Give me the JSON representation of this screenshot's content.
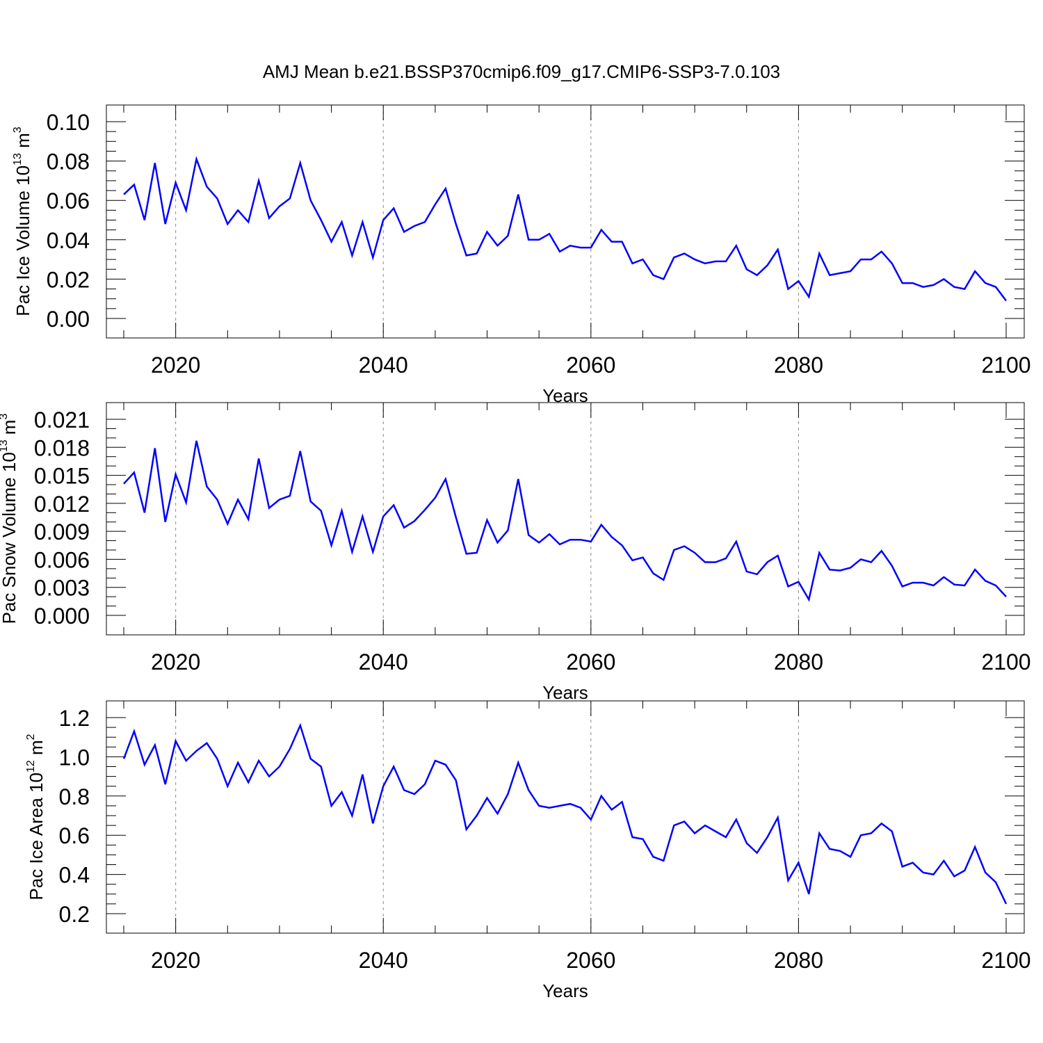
{
  "title": "AMJ Mean b.e21.BSSP370cmip6.f09_g17.CMIP6-SSP3-7.0.103",
  "line_color": "#0000ff",
  "chart_data": [
    {
      "type": "line",
      "ylabel": "Pac Ice Volume",
      "ylabel_unit_base": "10",
      "ylabel_unit_exp": "13",
      "ylabel_unit_tail": " m",
      "ylabel_unit_tail_exp": "3",
      "xlabel": "Years",
      "xlim": [
        2015,
        2100
      ],
      "ylim": [
        0.0,
        0.1
      ],
      "xticks": [
        "2020",
        "2040",
        "2060",
        "2080",
        "2100"
      ],
      "yticks": [
        "0.00",
        "0.02",
        "0.04",
        "0.06",
        "0.08",
        "0.10"
      ],
      "grid": "dashed vertical at major x ticks",
      "x": [
        2015,
        2016,
        2017,
        2018,
        2019,
        2020,
        2021,
        2022,
        2023,
        2024,
        2025,
        2026,
        2027,
        2028,
        2029,
        2030,
        2031,
        2032,
        2033,
        2034,
        2035,
        2036,
        2037,
        2038,
        2039,
        2040,
        2041,
        2042,
        2043,
        2044,
        2045,
        2046,
        2047,
        2048,
        2049,
        2050,
        2051,
        2052,
        2053,
        2054,
        2055,
        2056,
        2057,
        2058,
        2059,
        2060,
        2061,
        2062,
        2063,
        2064,
        2065,
        2066,
        2067,
        2068,
        2069,
        2070,
        2071,
        2072,
        2073,
        2074,
        2075,
        2076,
        2077,
        2078,
        2079,
        2080,
        2081,
        2082,
        2083,
        2084,
        2085,
        2086,
        2087,
        2088,
        2089,
        2090,
        2091,
        2092,
        2093,
        2094,
        2095,
        2096,
        2097,
        2098,
        2099,
        2100
      ],
      "values": [
        0.063,
        0.068,
        0.05,
        0.079,
        0.048,
        0.069,
        0.055,
        0.081,
        0.067,
        0.061,
        0.048,
        0.055,
        0.049,
        0.07,
        0.051,
        0.057,
        0.061,
        0.079,
        0.06,
        0.05,
        0.039,
        0.049,
        0.032,
        0.049,
        0.031,
        0.05,
        0.056,
        0.044,
        0.047,
        0.049,
        0.058,
        0.066,
        0.048,
        0.032,
        0.033,
        0.044,
        0.037,
        0.042,
        0.063,
        0.04,
        0.04,
        0.043,
        0.034,
        0.037,
        0.036,
        0.036,
        0.045,
        0.039,
        0.039,
        0.028,
        0.03,
        0.022,
        0.02,
        0.031,
        0.033,
        0.03,
        0.028,
        0.029,
        0.029,
        0.037,
        0.025,
        0.022,
        0.027,
        0.035,
        0.015,
        0.019,
        0.011,
        0.033,
        0.022,
        0.023,
        0.024,
        0.03,
        0.03,
        0.034,
        0.028,
        0.018,
        0.018,
        0.016,
        0.017,
        0.02,
        0.016,
        0.015,
        0.024,
        0.018,
        0.016,
        0.009
      ]
    },
    {
      "type": "line",
      "ylabel": "Pac Snow Volume",
      "ylabel_unit_base": "10",
      "ylabel_unit_exp": "13",
      "ylabel_unit_tail": " m",
      "ylabel_unit_tail_exp": "3",
      "xlabel": "Years",
      "xlim": [
        2015,
        2100
      ],
      "ylim": [
        0.0,
        0.021
      ],
      "xticks": [
        "2020",
        "2040",
        "2060",
        "2080",
        "2100"
      ],
      "yticks": [
        "0.000",
        "0.003",
        "0.006",
        "0.009",
        "0.012",
        "0.015",
        "0.018",
        "0.021"
      ],
      "grid": "dashed vertical at major x ticks",
      "x": [
        2015,
        2016,
        2017,
        2018,
        2019,
        2020,
        2021,
        2022,
        2023,
        2024,
        2025,
        2026,
        2027,
        2028,
        2029,
        2030,
        2031,
        2032,
        2033,
        2034,
        2035,
        2036,
        2037,
        2038,
        2039,
        2040,
        2041,
        2042,
        2043,
        2044,
        2045,
        2046,
        2047,
        2048,
        2049,
        2050,
        2051,
        2052,
        2053,
        2054,
        2055,
        2056,
        2057,
        2058,
        2059,
        2060,
        2061,
        2062,
        2063,
        2064,
        2065,
        2066,
        2067,
        2068,
        2069,
        2070,
        2071,
        2072,
        2073,
        2074,
        2075,
        2076,
        2077,
        2078,
        2079,
        2080,
        2081,
        2082,
        2083,
        2084,
        2085,
        2086,
        2087,
        2088,
        2089,
        2090,
        2091,
        2092,
        2093,
        2094,
        2095,
        2096,
        2097,
        2098,
        2099,
        2100
      ],
      "values": [
        0.0141,
        0.0153,
        0.011,
        0.0179,
        0.01,
        0.0151,
        0.0121,
        0.0187,
        0.0138,
        0.0124,
        0.0098,
        0.0124,
        0.0103,
        0.0168,
        0.0115,
        0.0124,
        0.0128,
        0.0176,
        0.0122,
        0.0112,
        0.0075,
        0.0112,
        0.0068,
        0.0106,
        0.0068,
        0.0106,
        0.0118,
        0.0094,
        0.0101,
        0.0113,
        0.0126,
        0.0146,
        0.0105,
        0.0066,
        0.0067,
        0.0102,
        0.0078,
        0.0091,
        0.0146,
        0.0086,
        0.0078,
        0.0087,
        0.0076,
        0.0081,
        0.0081,
        0.0079,
        0.0097,
        0.0084,
        0.0075,
        0.0059,
        0.0062,
        0.0045,
        0.0038,
        0.007,
        0.0074,
        0.0067,
        0.0057,
        0.0057,
        0.0061,
        0.0079,
        0.0047,
        0.0044,
        0.0057,
        0.0064,
        0.0031,
        0.0036,
        0.0017,
        0.0067,
        0.0049,
        0.0048,
        0.0051,
        0.006,
        0.0057,
        0.0069,
        0.0053,
        0.0031,
        0.0035,
        0.0035,
        0.0032,
        0.0041,
        0.0033,
        0.0032,
        0.0049,
        0.0037,
        0.0032,
        0.002
      ]
    },
    {
      "type": "line",
      "ylabel": "Pac Ice Area",
      "ylabel_unit_base": "10",
      "ylabel_unit_exp": "12",
      "ylabel_unit_tail": " m",
      "ylabel_unit_tail_exp": "2",
      "xlabel": "Years",
      "xlim": [
        2015,
        2100
      ],
      "ylim": [
        0.2,
        1.2
      ],
      "xticks": [
        "2020",
        "2040",
        "2060",
        "2080",
        "2100"
      ],
      "yticks": [
        "0.2",
        "0.4",
        "0.6",
        "0.8",
        "1.0",
        "1.2"
      ],
      "grid": "dashed vertical at major x ticks",
      "x": [
        2015,
        2016,
        2017,
        2018,
        2019,
        2020,
        2021,
        2022,
        2023,
        2024,
        2025,
        2026,
        2027,
        2028,
        2029,
        2030,
        2031,
        2032,
        2033,
        2034,
        2035,
        2036,
        2037,
        2038,
        2039,
        2040,
        2041,
        2042,
        2043,
        2044,
        2045,
        2046,
        2047,
        2048,
        2049,
        2050,
        2051,
        2052,
        2053,
        2054,
        2055,
        2056,
        2057,
        2058,
        2059,
        2060,
        2061,
        2062,
        2063,
        2064,
        2065,
        2066,
        2067,
        2068,
        2069,
        2070,
        2071,
        2072,
        2073,
        2074,
        2075,
        2076,
        2077,
        2078,
        2079,
        2080,
        2081,
        2082,
        2083,
        2084,
        2085,
        2086,
        2087,
        2088,
        2089,
        2090,
        2091,
        2092,
        2093,
        2094,
        2095,
        2096,
        2097,
        2098,
        2099,
        2100
      ],
      "values": [
        0.99,
        1.13,
        0.96,
        1.06,
        0.86,
        1.08,
        0.98,
        1.03,
        1.07,
        0.99,
        0.85,
        0.97,
        0.87,
        0.98,
        0.9,
        0.95,
        1.04,
        1.16,
        0.99,
        0.95,
        0.75,
        0.82,
        0.7,
        0.91,
        0.66,
        0.85,
        0.95,
        0.83,
        0.81,
        0.86,
        0.98,
        0.96,
        0.88,
        0.63,
        0.7,
        0.79,
        0.71,
        0.81,
        0.97,
        0.83,
        0.75,
        0.74,
        0.75,
        0.76,
        0.74,
        0.68,
        0.8,
        0.73,
        0.77,
        0.59,
        0.58,
        0.49,
        0.47,
        0.65,
        0.67,
        0.61,
        0.65,
        0.62,
        0.59,
        0.68,
        0.56,
        0.51,
        0.59,
        0.69,
        0.37,
        0.46,
        0.3,
        0.61,
        0.53,
        0.52,
        0.49,
        0.6,
        0.61,
        0.66,
        0.62,
        0.44,
        0.46,
        0.41,
        0.4,
        0.47,
        0.39,
        0.42,
        0.54,
        0.41,
        0.36,
        0.25
      ]
    }
  ]
}
